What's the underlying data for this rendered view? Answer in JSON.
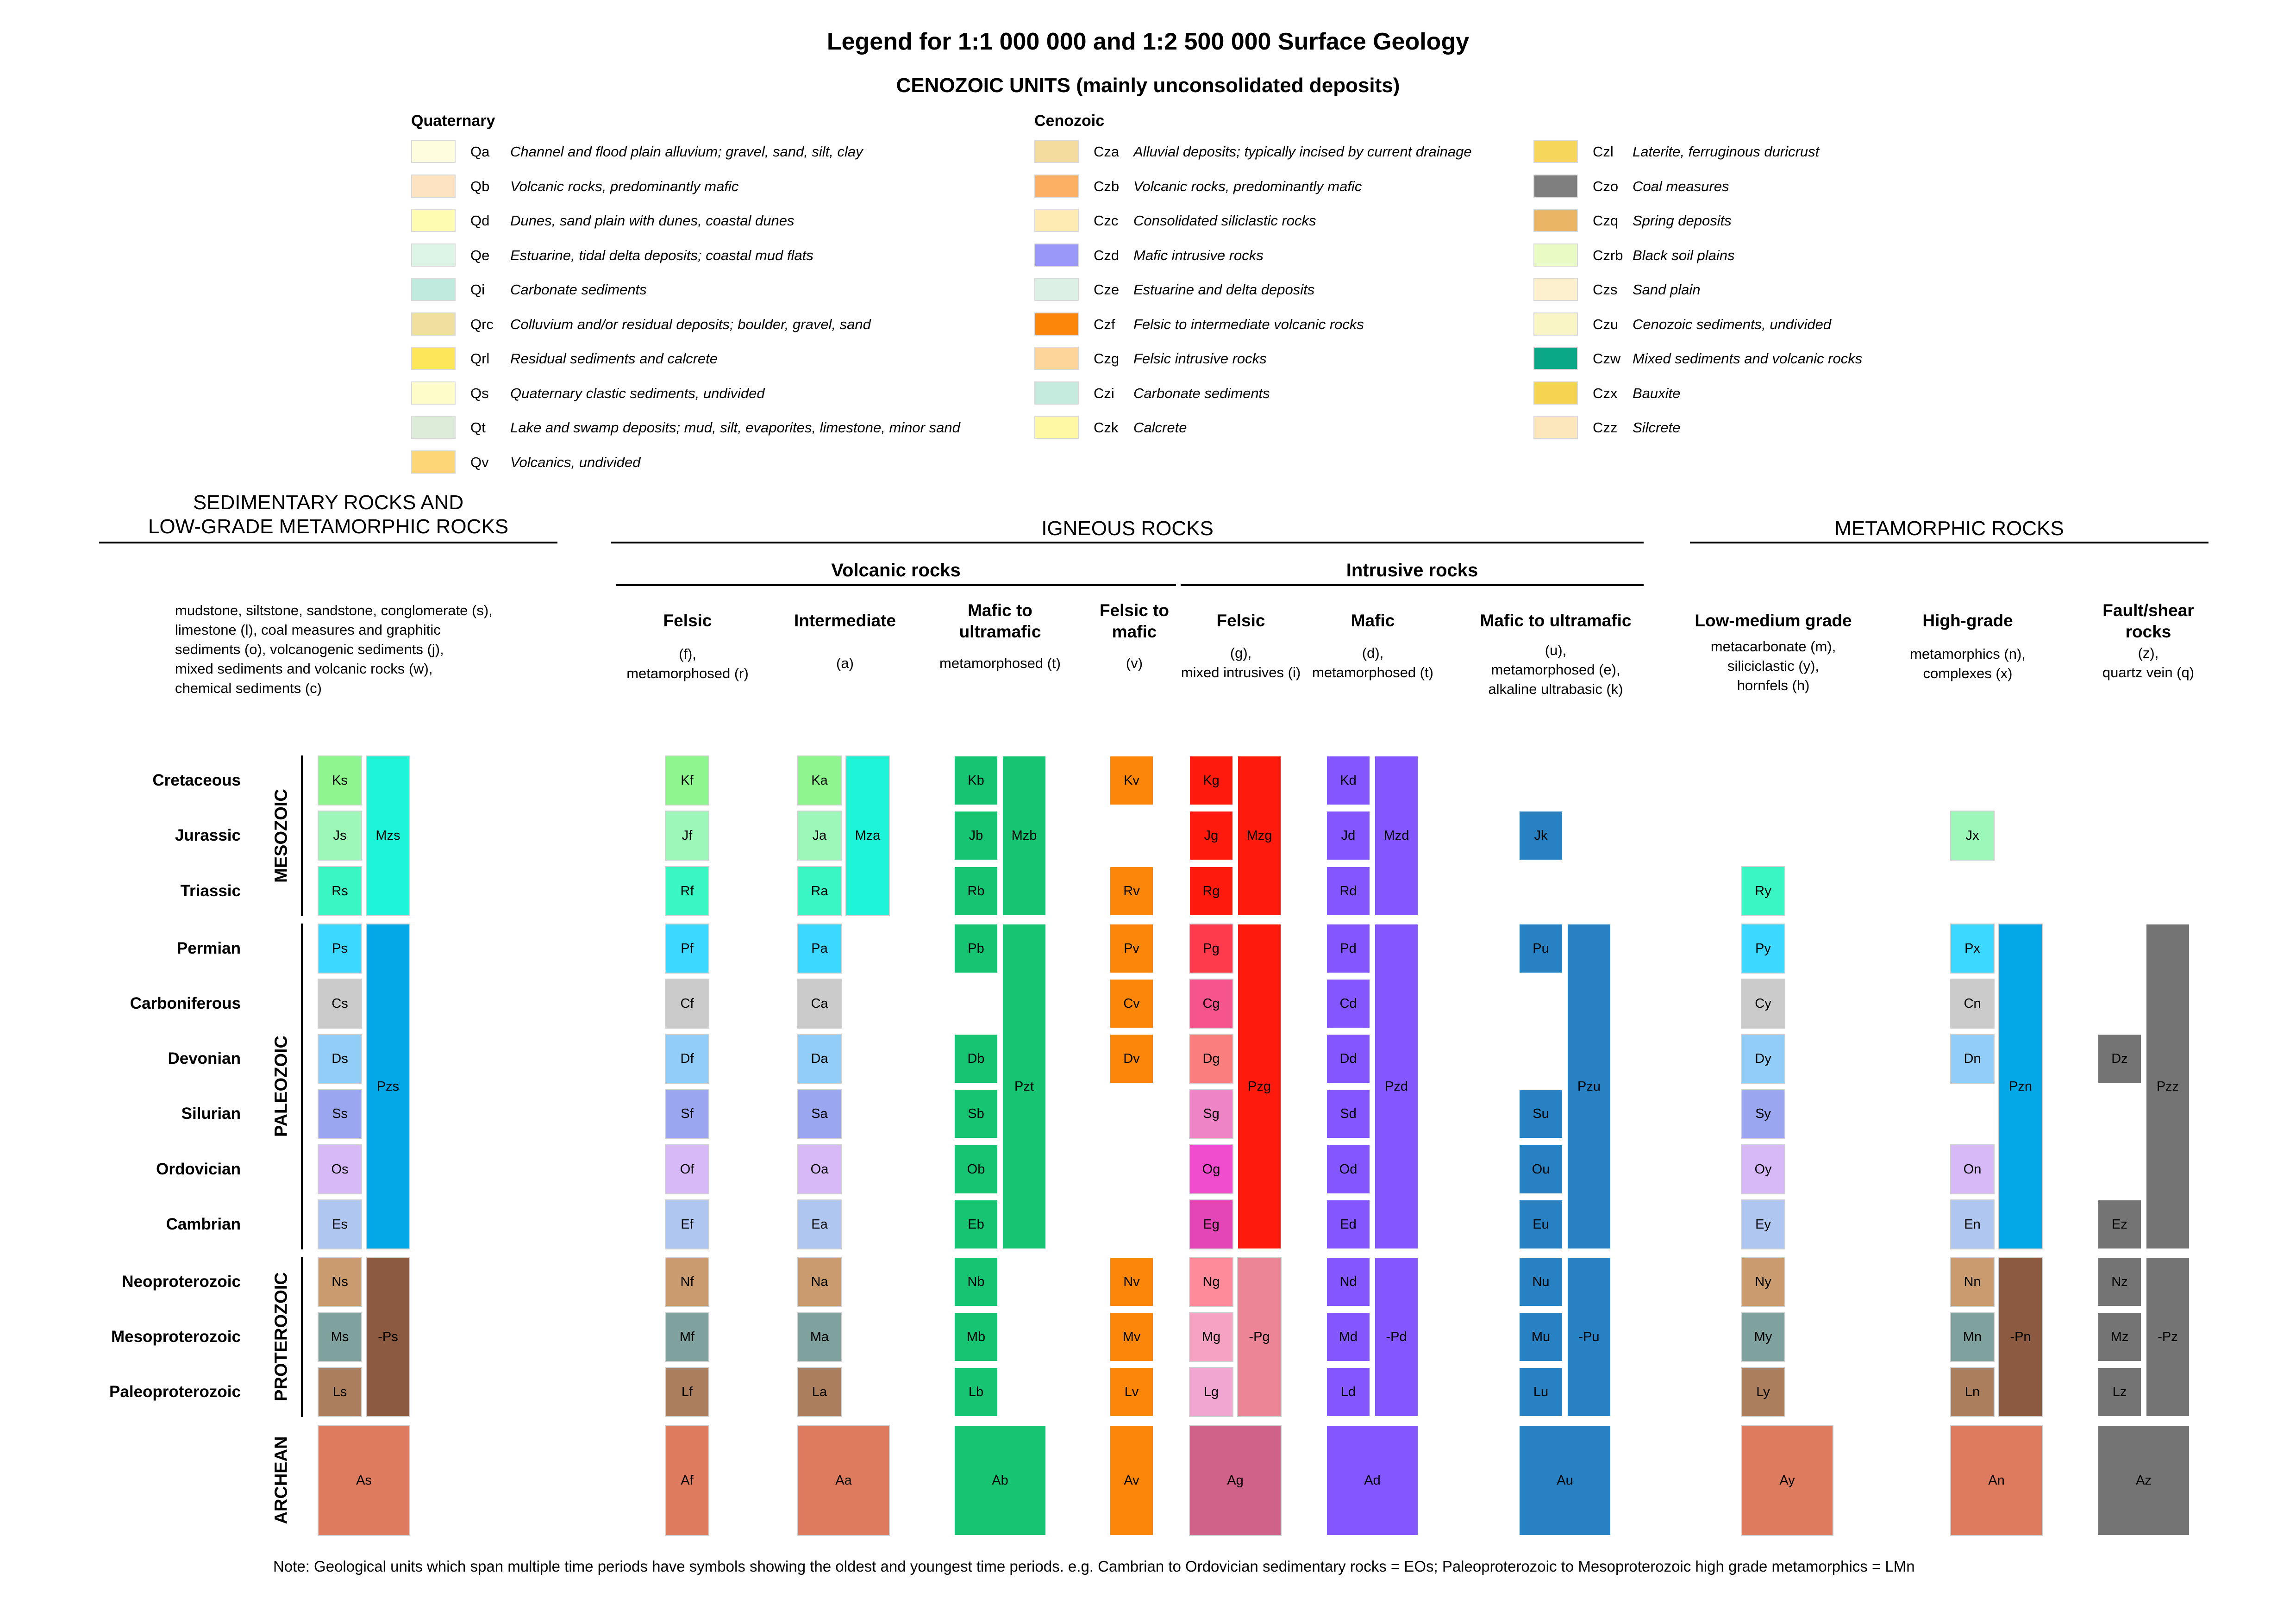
{
  "title": "Legend for 1:1 000 000 and 1:2 500 000 Surface Geology",
  "subtitle": "CENOZOIC UNITS (mainly unconsolidated deposits)",
  "cenozoic_legend": {
    "quaternary_heading": "Quaternary",
    "cenozoic_heading": "Cenozoic",
    "quaternary": [
      {
        "code": "Qa",
        "desc": "Channel and flood plain alluvium; gravel, sand, silt, clay",
        "color": "#fefedf"
      },
      {
        "code": "Qb",
        "desc": "Volcanic rocks, predominantly mafic",
        "color": "#fde3c1"
      },
      {
        "code": "Qd",
        "desc": "Dunes, sand plain with dunes, coastal dunes",
        "color": "#fefcb0"
      },
      {
        "code": "Qe",
        "desc": "Estuarine, tidal delta deposits; coastal mud flats",
        "color": "#dcf5e6"
      },
      {
        "code": "Qi",
        "desc": "Carbonate sediments",
        "color": "#bfeadd"
      },
      {
        "code": "Qrc",
        "desc": "Colluvium and/or residual deposits; boulder, gravel, sand",
        "color": "#efe0a0"
      },
      {
        "code": "Qrl",
        "desc": "Residual sediments and calcrete",
        "color": "#fde65a"
      },
      {
        "code": "Qs",
        "desc": "Quaternary clastic sediments, undivided",
        "color": "#fefcc8"
      },
      {
        "code": "Qt",
        "desc": "Lake and swamp deposits; mud, silt, evaporites, limestone, minor sand",
        "color": "#ddebd9"
      },
      {
        "code": "Qv",
        "desc": "Volcanics, undivided",
        "color": "#fdd777"
      }
    ],
    "cenozoic_a": [
      {
        "code": "Cza",
        "desc": "Alluvial deposits; typically incised by current drainage",
        "color": "#f3dc9e"
      },
      {
        "code": "Czb",
        "desc": "Volcanic rocks, predominantly mafic",
        "color": "#fbb063"
      },
      {
        "code": "Czc",
        "desc": "Consolidated siliclastic rocks",
        "color": "#fdebb3"
      },
      {
        "code": "Czd",
        "desc": "Mafic intrusive rocks",
        "color": "#9a98f8"
      },
      {
        "code": "Cze",
        "desc": "Estuarine and delta deposits",
        "color": "#dcf0e5"
      },
      {
        "code": "Czf",
        "desc": "Felsic to intermediate volcanic rocks",
        "color": "#fc8609"
      },
      {
        "code": "Czg",
        "desc": "Felsic intrusive rocks",
        "color": "#fdd59b"
      },
      {
        "code": "Czi",
        "desc": "Carbonate sediments",
        "color": "#c4ebdd"
      },
      {
        "code": "Czk",
        "desc": "Calcrete",
        "color": "#fef7a3"
      }
    ],
    "cenozoic_b": [
      {
        "code": "Czl",
        "desc": "Laterite, ferruginous duricrust",
        "color": "#f7d65c"
      },
      {
        "code": "Czo",
        "desc": "Coal measures",
        "color": "#7f7f7f"
      },
      {
        "code": "Czq",
        "desc": "Spring deposits",
        "color": "#eab565"
      },
      {
        "code": "Czrb",
        "desc": "Black soil plains",
        "color": "#e9fbc5"
      },
      {
        "code": "Czs",
        "desc": "Sand plain",
        "color": "#fdf0cf"
      },
      {
        "code": "Czu",
        "desc": "Cenozoic sediments, undivided",
        "color": "#f9f5c5"
      },
      {
        "code": "Czw",
        "desc": "Mixed sediments and volcanic rocks",
        "color": "#0aa887"
      },
      {
        "code": "Czx",
        "desc": "Bauxite",
        "color": "#f6d452"
      },
      {
        "code": "Czz",
        "desc": "Silcrete",
        "color": "#fce6bc"
      }
    ]
  },
  "sections": {
    "sedimentary": "SEDIMENTARY ROCKS AND\nLOW-GRADE METAMORPHIC ROCKS",
    "igneous": "IGNEOUS ROCKS",
    "metamorphic": "METAMORPHIC ROCKS",
    "volcanic": "Volcanic rocks",
    "intrusive": "Intrusive rocks"
  },
  "columns": {
    "sed_desc": "mudstone, siltstone, sandstone, conglomerate (s),\nlimestone (l), coal measures and graphitic\nsediments (o), volcanogenic sediments (j),\nmixed sediments and volcanic rocks (w),\nchemical sediments (c)",
    "felsic_v": {
      "title": "Felsic",
      "desc": "(f),\nmetamorphosed (r)"
    },
    "intermediate": {
      "title": "Intermediate",
      "desc": "(a)"
    },
    "mafic_ultra_v": {
      "title": "Mafic to\nultramafic",
      "desc": "metamorphosed (t)"
    },
    "felsic_mafic": {
      "title": "Felsic to\nmafic",
      "desc": "(v)"
    },
    "felsic_i": {
      "title": "Felsic",
      "desc": "(g),\nmixed intrusives (i)"
    },
    "mafic_i": {
      "title": "Mafic",
      "desc": "(d),\nmetamorphosed (t)"
    },
    "mafic_ultra_i": {
      "title": "Mafic to ultramafic",
      "desc": "(u),\nmetamorphosed (e),\nalkaline ultrabasic (k)"
    },
    "low_med": {
      "title": "Low-medium grade",
      "desc": "metacarbonate (m),\nsiliciclastic (y),\nhornfels (h)"
    },
    "high_grade": {
      "title": "High-grade",
      "desc": "metamorphics (n),\ncomplexes (x)"
    },
    "fault": {
      "title": "Fault/shear\nrocks",
      "desc": "(z),\nquartz vein (q)"
    }
  },
  "periods": [
    "Cretaceous",
    "Jurassic",
    "Triassic",
    "Permian",
    "Carboniferous",
    "Devonian",
    "Silurian",
    "Ordovician",
    "Cambrian",
    "Neoproterozoic",
    "Mesoproterozoic",
    "Paleoproterozoic"
  ],
  "eras": [
    "MESOZOIC",
    "PALEOZOIC",
    "PROTEROZOIC",
    "ARCHEAN"
  ],
  "units": {
    "Ks": "Ks",
    "Js": "Js",
    "Rs": "Rs",
    "Mzs": "Mzs",
    "Ps": "Ps",
    "Cs": "Cs",
    "Ds": "Ds",
    "Ss": "Ss",
    "Os": "Os",
    "Es": "Es",
    "Pzs": "Pzs",
    "Ns": "Ns",
    "Ms": "Ms",
    "Ls": "Ls",
    "-Ps": "-Ps",
    "As": "As",
    "Kf": "Kf",
    "Jf": "Jf",
    "Rf": "Rf",
    "Pf": "Pf",
    "Cf": "Cf",
    "Df": "Df",
    "Sf": "Sf",
    "Of": "Of",
    "Ef": "Ef",
    "Nf": "Nf",
    "Mf": "Mf",
    "Lf": "Lf",
    "Af": "Af",
    "Ka": "Ka",
    "Ja": "Ja",
    "Ra": "Ra",
    "Mza": "Mza",
    "Pa": "Pa",
    "Ca": "Ca",
    "Da": "Da",
    "Sa": "Sa",
    "Oa": "Oa",
    "Ea": "Ea",
    "Na": "Na",
    "Ma": "Ma",
    "La": "La",
    "Aa": "Aa",
    "Kb": "Kb",
    "Jb": "Jb",
    "Rb": "Rb",
    "Mzb": "Mzb",
    "Pb": "Pb",
    "Pzt": "Pzt",
    "Db": "Db",
    "Sb": "Sb",
    "Ob": "Ob",
    "Eb": "Eb",
    "Nb": "Nb",
    "Mb": "Mb",
    "Lb": "Lb",
    "Ab": "Ab",
    "Kv": "Kv",
    "Rv": "Rv",
    "Pv": "Pv",
    "Cv": "Cv",
    "Dv": "Dv",
    "Nv": "Nv",
    "Mv": "Mv",
    "Lv": "Lv",
    "Av": "Av",
    "Kg": "Kg",
    "Jg": "Jg",
    "Rg": "Rg",
    "Mzg": "Mzg",
    "Pg": "Pg",
    "Cg": "Cg",
    "Dg": "Dg",
    "Sg": "Sg",
    "Og": "Og",
    "Eg": "Eg",
    "Pzg": "Pzg",
    "Ng": "Ng",
    "Mg": "Mg",
    "Lg": "Lg",
    "-Pg": "-Pg",
    "Ag": "Ag",
    "Kd": "Kd",
    "Jd": "Jd",
    "Rd": "Rd",
    "Mzd": "Mzd",
    "Pd": "Pd",
    "Cd": "Cd",
    "Dd": "Dd",
    "Sd": "Sd",
    "Od": "Od",
    "Ed": "Ed",
    "Pzd": "Pzd",
    "Nd": "Nd",
    "Md": "Md",
    "Ld": "Ld",
    "-Pd": "-Pd",
    "Ad": "Ad",
    "Jk": "Jk",
    "Pu": "Pu",
    "Su": "Su",
    "Ou": "Ou",
    "Eu": "Eu",
    "Pzu": "Pzu",
    "Nu": "Nu",
    "Mu": "Mu",
    "Lu": "Lu",
    "-Pu": "-Pu",
    "Au": "Au",
    "Ry": "Ry",
    "Py": "Py",
    "Cy": "Cy",
    "Dy": "Dy",
    "Sy": "Sy",
    "Oy": "Oy",
    "Ey": "Ey",
    "Ny": "Ny",
    "My": "My",
    "Ly": "Ly",
    "Ay": "Ay",
    "Jx": "Jx",
    "Px": "Px",
    "Cn": "Cn",
    "Dn": "Dn",
    "On": "On",
    "En": "En",
    "Pzn": "Pzn",
    "Nn": "Nn",
    "Mn": "Mn",
    "Ln": "Ln",
    "-Pn": "-Pn",
    "An": "An",
    "Dz": "Dz",
    "Ez": "Ez",
    "Pzz": "Pzz",
    "Nz": "Nz",
    "Mz": "Mz",
    "Lz": "Lz",
    "-Pz": "-Pz",
    "Az": "Az"
  },
  "note": "Note: Geological units which span multiple time periods have symbols showing the oldest and youngest time periods.  e.g. Cambrian to Ordovician sedimentary rocks = EOs; Paleoproterozoic to Mesoproterozoic high grade metamorphics = LMn"
}
